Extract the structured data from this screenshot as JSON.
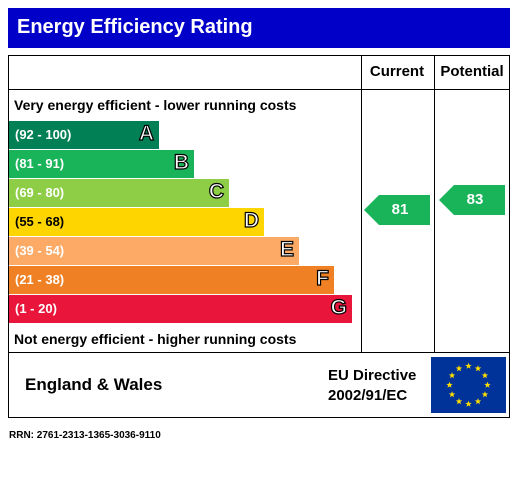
{
  "header": {
    "title": "Energy Efficiency Rating"
  },
  "columns": {
    "current": "Current",
    "potential": "Potential"
  },
  "notes": {
    "top": "Very energy efficient - lower running costs",
    "bottom": "Not energy efficient - higher running costs"
  },
  "colors": {
    "title_bg": "#0000c8",
    "A": "#008054",
    "B": "#19b459",
    "C": "#8dce46",
    "D": "#ffd500",
    "E": "#fcaa65",
    "F": "#ef8023",
    "G": "#e9153b",
    "pointer": "#19b459",
    "flag": "#003399",
    "stars": "#ffdd00"
  },
  "chart_data": {
    "type": "bar",
    "title": "Energy Efficiency Rating",
    "bands": [
      {
        "letter": "A",
        "range": "(92 - 100)"
      },
      {
        "letter": "B",
        "range": "(81 - 91)"
      },
      {
        "letter": "C",
        "range": "(69 - 80)"
      },
      {
        "letter": "D",
        "range": "(55 - 68)"
      },
      {
        "letter": "E",
        "range": "(39 - 54)"
      },
      {
        "letter": "F",
        "range": "(21 - 38)"
      },
      {
        "letter": "G",
        "range": "(1 - 20)"
      }
    ],
    "current": {
      "label": "Current",
      "value": 81,
      "band": "B"
    },
    "potential": {
      "label": "Potential",
      "value": 83,
      "band": "B"
    }
  },
  "footer": {
    "region": "England & Wales",
    "directive_line1": "EU Directive",
    "directive_line2": "2002/91/EC",
    "rrn": "RRN: 2761-2313-1365-3036-9110"
  }
}
